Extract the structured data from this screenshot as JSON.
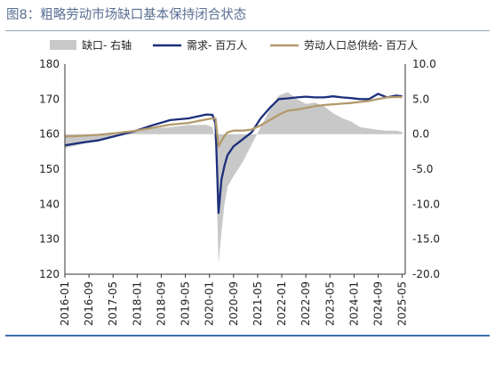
{
  "title": "图8：粗略劳动市场缺口基本保持闭合状态",
  "colors": {
    "title": "#5a6f93",
    "gap": "#c8c8c8",
    "demand": "#1c2f7c",
    "supply": "#b39a6c",
    "rule": "#3a6fb0"
  },
  "chart_data": {
    "type": "line",
    "title": "图8：粗略劳动市场缺口基本保持闭合状态",
    "x_start": "2016-01",
    "x_end": "2025-06",
    "x_ticks": [
      "2016-01",
      "2016-09",
      "2017-05",
      "2018-01",
      "2018-09",
      "2019-05",
      "2020-01",
      "2020-09",
      "2021-05",
      "2022-01",
      "2022-09",
      "2023-05",
      "2024-01",
      "2024-09",
      "2025-05"
    ],
    "y_left": {
      "lim": [
        120,
        180
      ],
      "ticks": [
        "180",
        "170",
        "160",
        "150",
        "140",
        "130",
        "120"
      ]
    },
    "y_right": {
      "lim": [
        -20,
        10
      ],
      "ticks": [
        "10.0",
        "5.0",
        "0.0",
        "-5.0",
        "-10.0",
        "-15.0",
        "-20.0"
      ]
    },
    "legend": [
      "缺口- 右轴",
      "需求- 百万人",
      "劳动人口总供给- 百万人"
    ],
    "series": [
      {
        "name": "缺口- 右轴",
        "type": "area",
        "axis": "right",
        "color": "#c8c8c8",
        "x": [
          "2016-01",
          "2016-06",
          "2016-12",
          "2017-06",
          "2017-12",
          "2018-06",
          "2018-12",
          "2019-06",
          "2019-12",
          "2020-02",
          "2020-03",
          "2020-04",
          "2020-05",
          "2020-06",
          "2020-07",
          "2020-09",
          "2020-12",
          "2021-03",
          "2021-06",
          "2021-09",
          "2021-12",
          "2022-03",
          "2022-06",
          "2022-09",
          "2022-12",
          "2023-03",
          "2023-06",
          "2023-09",
          "2023-12",
          "2024-03",
          "2024-06",
          "2024-09",
          "2024-12",
          "2025-03",
          "2025-05"
        ],
        "values": [
          -2.0,
          -1.5,
          -0.8,
          -0.3,
          0.3,
          0.8,
          1.0,
          1.3,
          1.3,
          1.0,
          -1.5,
          -18.5,
          -14,
          -10,
          -7.5,
          -6.0,
          -4.0,
          -1.5,
          1.0,
          3.5,
          5.5,
          6.0,
          5.0,
          4.3,
          4.5,
          4.0,
          3.0,
          2.3,
          1.8,
          1.0,
          0.8,
          0.6,
          0.5,
          0.5,
          0.3
        ]
      },
      {
        "name": "需求- 百万人",
        "type": "line",
        "axis": "left",
        "color": "#1c2f7c",
        "x": [
          "2016-01",
          "2016-06",
          "2016-12",
          "2017-06",
          "2017-12",
          "2018-06",
          "2018-12",
          "2019-06",
          "2019-12",
          "2020-02",
          "2020-03",
          "2020-04",
          "2020-05",
          "2020-06",
          "2020-07",
          "2020-09",
          "2020-12",
          "2021-03",
          "2021-06",
          "2021-09",
          "2021-12",
          "2022-03",
          "2022-06",
          "2022-09",
          "2022-12",
          "2023-03",
          "2023-06",
          "2023-09",
          "2023-12",
          "2024-03",
          "2024-06",
          "2024-09",
          "2024-12",
          "2025-03",
          "2025-05"
        ],
        "values": [
          156.8,
          157.5,
          158.2,
          159.5,
          160.8,
          162.5,
          164.0,
          164.5,
          165.6,
          165.5,
          163.0,
          137.5,
          147,
          151,
          154,
          156.5,
          158.5,
          160.5,
          164.5,
          167.5,
          170.0,
          170.2,
          170.5,
          170.7,
          170.5,
          170.5,
          170.8,
          170.5,
          170.3,
          170.0,
          170.0,
          171.5,
          170.5,
          171.0,
          170.8
        ]
      },
      {
        "name": "劳动人口总供给- 百万人",
        "type": "line",
        "axis": "left",
        "color": "#b39a6c",
        "x": [
          "2016-01",
          "2016-06",
          "2016-12",
          "2017-06",
          "2017-12",
          "2018-06",
          "2018-12",
          "2019-06",
          "2019-12",
          "2020-02",
          "2020-03",
          "2020-04",
          "2020-05",
          "2020-06",
          "2020-07",
          "2020-09",
          "2020-12",
          "2021-03",
          "2021-06",
          "2021-09",
          "2021-12",
          "2022-03",
          "2022-06",
          "2022-09",
          "2022-12",
          "2023-03",
          "2023-06",
          "2023-09",
          "2023-12",
          "2024-03",
          "2024-06",
          "2024-09",
          "2024-12",
          "2025-03",
          "2025-05"
        ],
        "values": [
          159.3,
          159.5,
          159.8,
          160.3,
          160.9,
          161.8,
          162.7,
          163.2,
          164.2,
          164.5,
          164.5,
          156.5,
          158.0,
          159.5,
          160.5,
          161.0,
          161.0,
          161.3,
          162.5,
          164.0,
          165.5,
          166.7,
          167.0,
          167.5,
          168.0,
          168.3,
          168.5,
          168.7,
          168.9,
          169.2,
          169.5,
          170.0,
          170.5,
          170.6,
          170.6
        ]
      }
    ]
  }
}
